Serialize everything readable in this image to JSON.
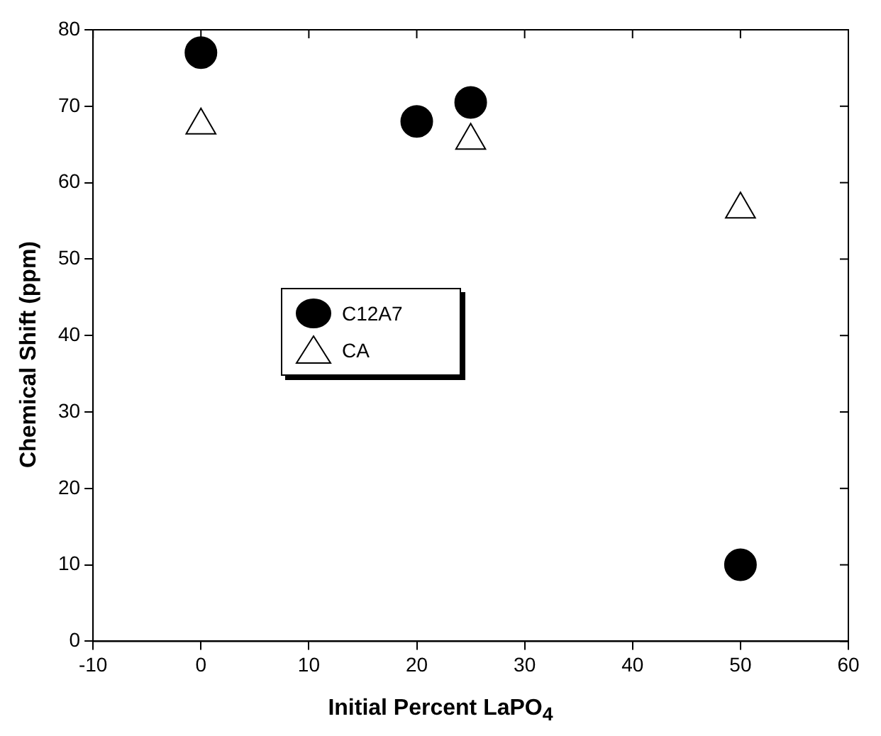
{
  "chart_data": {
    "type": "scatter",
    "xlabel": "Initial Percent LaPO$_{4}$",
    "ylabel": "Chemical Shift (ppm)",
    "xlim": [
      -10,
      60
    ],
    "xticks": [
      -10,
      0,
      10,
      20,
      30,
      40,
      50,
      60
    ],
    "ylim": [
      0,
      80
    ],
    "yticks": [
      0,
      10,
      20,
      30,
      40,
      50,
      60,
      70,
      80
    ],
    "grid": false,
    "legend": "left",
    "series": [
      {
        "name": "C12A7",
        "color": "#000000",
        "marker": "circle",
        "x": [
          0,
          20,
          25,
          50
        ],
        "values": [
          77,
          68,
          70.5,
          10
        ]
      },
      {
        "name": "CA",
        "color": "#000000",
        "marker": "triangle",
        "x": [
          0,
          25,
          50
        ],
        "values": [
          67.5,
          65.5,
          56.5
        ]
      }
    ]
  }
}
